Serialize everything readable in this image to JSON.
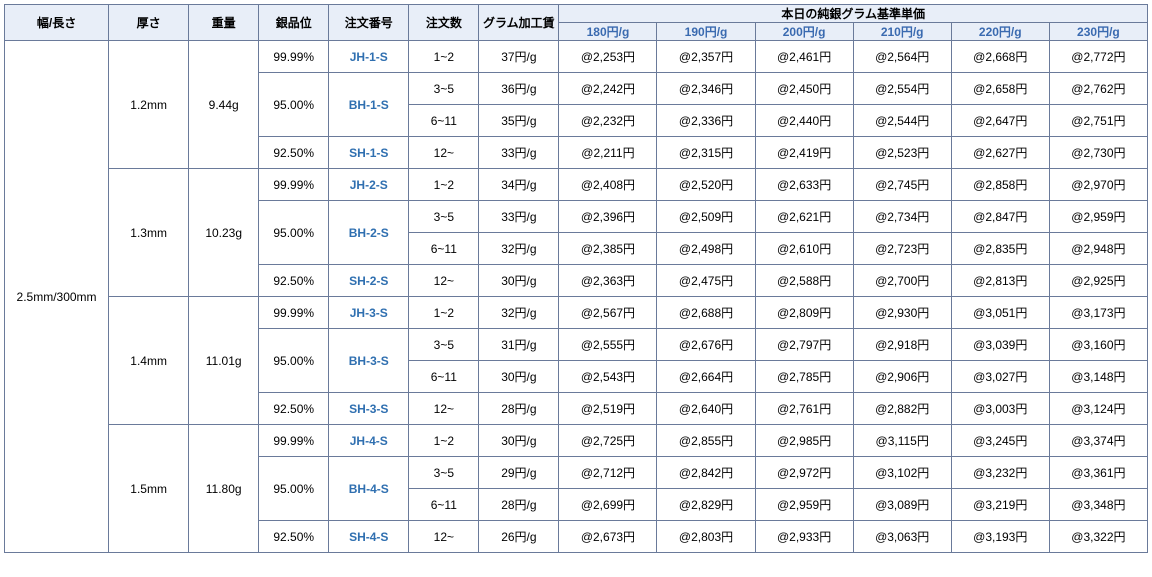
{
  "headers": {
    "width_length": "幅/長さ",
    "thickness": "厚さ",
    "weight": "重量",
    "purity": "銀品位",
    "order_no": "注文番号",
    "order_qty": "注文数",
    "gram_fee": "グラム加工賃",
    "price_title": "本日の純銀グラム基準単価",
    "price_cols": [
      "180円/g",
      "190円/g",
      "200円/g",
      "210円/g",
      "220円/g",
      "230円/g"
    ]
  },
  "width_length": "2.5mm/300mm",
  "groups": [
    {
      "thickness": "1.2mm",
      "weight": "9.44g",
      "purities": [
        "99.99%",
        "95.00%",
        "92.50%"
      ],
      "orders": [
        "JH-1-S",
        "BH-1-S",
        "SH-1-S"
      ],
      "rows": [
        {
          "qty": "1~2",
          "fee": "37円/g",
          "p": [
            "@2,253円",
            "@2,357円",
            "@2,461円",
            "@2,564円",
            "@2,668円",
            "@2,772円"
          ]
        },
        {
          "qty": "3~5",
          "fee": "36円/g",
          "p": [
            "@2,242円",
            "@2,346円",
            "@2,450円",
            "@2,554円",
            "@2,658円",
            "@2,762円"
          ]
        },
        {
          "qty": "6~11",
          "fee": "35円/g",
          "p": [
            "@2,232円",
            "@2,336円",
            "@2,440円",
            "@2,544円",
            "@2,647円",
            "@2,751円"
          ]
        },
        {
          "qty": "12~",
          "fee": "33円/g",
          "p": [
            "@2,211円",
            "@2,315円",
            "@2,419円",
            "@2,523円",
            "@2,627円",
            "@2,730円"
          ]
        }
      ]
    },
    {
      "thickness": "1.3mm",
      "weight": "10.23g",
      "purities": [
        "99.99%",
        "95.00%",
        "92.50%"
      ],
      "orders": [
        "JH-2-S",
        "BH-2-S",
        "SH-2-S"
      ],
      "rows": [
        {
          "qty": "1~2",
          "fee": "34円/g",
          "p": [
            "@2,408円",
            "@2,520円",
            "@2,633円",
            "@2,745円",
            "@2,858円",
            "@2,970円"
          ]
        },
        {
          "qty": "3~5",
          "fee": "33円/g",
          "p": [
            "@2,396円",
            "@2,509円",
            "@2,621円",
            "@2,734円",
            "@2,847円",
            "@2,959円"
          ]
        },
        {
          "qty": "6~11",
          "fee": "32円/g",
          "p": [
            "@2,385円",
            "@2,498円",
            "@2,610円",
            "@2,723円",
            "@2,835円",
            "@2,948円"
          ]
        },
        {
          "qty": "12~",
          "fee": "30円/g",
          "p": [
            "@2,363円",
            "@2,475円",
            "@2,588円",
            "@2,700円",
            "@2,813円",
            "@2,925円"
          ]
        }
      ]
    },
    {
      "thickness": "1.4mm",
      "weight": "11.01g",
      "purities": [
        "99.99%",
        "95.00%",
        "92.50%"
      ],
      "orders": [
        "JH-3-S",
        "BH-3-S",
        "SH-3-S"
      ],
      "rows": [
        {
          "qty": "1~2",
          "fee": "32円/g",
          "p": [
            "@2,567円",
            "@2,688円",
            "@2,809円",
            "@2,930円",
            "@3,051円",
            "@3,173円"
          ]
        },
        {
          "qty": "3~5",
          "fee": "31円/g",
          "p": [
            "@2,555円",
            "@2,676円",
            "@2,797円",
            "@2,918円",
            "@3,039円",
            "@3,160円"
          ]
        },
        {
          "qty": "6~11",
          "fee": "30円/g",
          "p": [
            "@2,543円",
            "@2,664円",
            "@2,785円",
            "@2,906円",
            "@3,027円",
            "@3,148円"
          ]
        },
        {
          "qty": "12~",
          "fee": "28円/g",
          "p": [
            "@2,519円",
            "@2,640円",
            "@2,761円",
            "@2,882円",
            "@3,003円",
            "@3,124円"
          ]
        }
      ]
    },
    {
      "thickness": "1.5mm",
      "weight": "11.80g",
      "purities": [
        "99.99%",
        "95.00%",
        "92.50%"
      ],
      "orders": [
        "JH-4-S",
        "BH-4-S",
        "SH-4-S"
      ],
      "rows": [
        {
          "qty": "1~2",
          "fee": "30円/g",
          "p": [
            "@2,725円",
            "@2,855円",
            "@2,985円",
            "@3,115円",
            "@3,245円",
            "@3,374円"
          ]
        },
        {
          "qty": "3~5",
          "fee": "29円/g",
          "p": [
            "@2,712円",
            "@2,842円",
            "@2,972円",
            "@3,102円",
            "@3,232円",
            "@3,361円"
          ]
        },
        {
          "qty": "6~11",
          "fee": "28円/g",
          "p": [
            "@2,699円",
            "@2,829円",
            "@2,959円",
            "@3,089円",
            "@3,219円",
            "@3,348円"
          ]
        },
        {
          "qty": "12~",
          "fee": "26円/g",
          "p": [
            "@2,673円",
            "@2,803円",
            "@2,933円",
            "@3,063円",
            "@3,193円",
            "@3,322円"
          ]
        }
      ]
    }
  ]
}
